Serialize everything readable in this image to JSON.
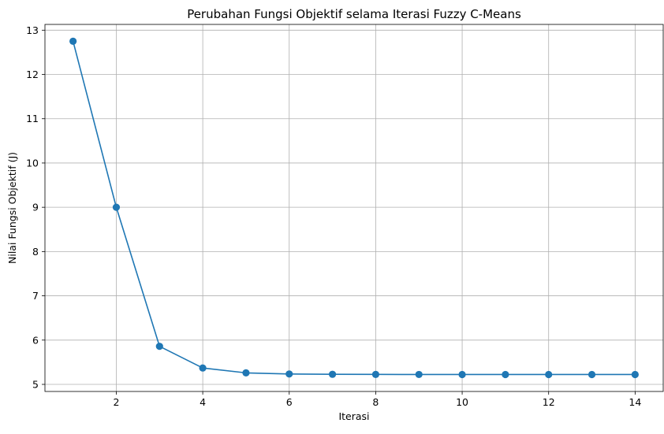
{
  "chart_data": {
    "type": "line",
    "title": "Perubahan Fungsi Objektif selama Iterasi Fuzzy C-Means",
    "xlabel": "Iterasi",
    "ylabel": "Nilai Fungsi Objektif (J)",
    "x": [
      1,
      2,
      3,
      4,
      5,
      6,
      7,
      8,
      9,
      10,
      11,
      12,
      13,
      14
    ],
    "series": [
      {
        "values": [
          12.75,
          9.0,
          5.86,
          5.37,
          5.26,
          5.235,
          5.228,
          5.225,
          5.224,
          5.223,
          5.223,
          5.223,
          5.223,
          5.223
        ],
        "color": "#1f77b4",
        "marker": "circle"
      }
    ],
    "xlim": [
      0.35,
      14.65
    ],
    "ylim": [
      4.84,
      13.13
    ],
    "xticks": [
      2,
      4,
      6,
      8,
      10,
      12,
      14
    ],
    "yticks": [
      5,
      6,
      7,
      8,
      9,
      10,
      11,
      12,
      13
    ],
    "grid": true,
    "legend": "none"
  }
}
